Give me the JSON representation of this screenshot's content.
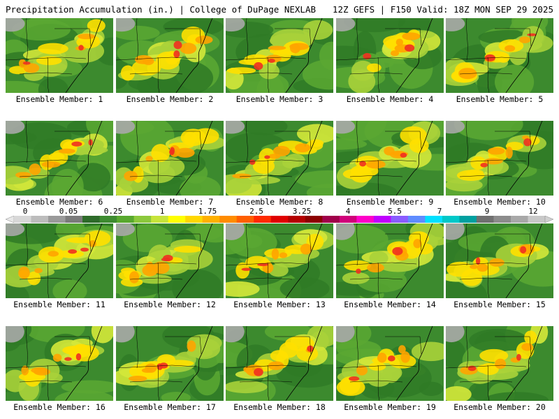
{
  "header": {
    "title": "Precipitation Accumulation (in.) | College of DuPage NEXLAB",
    "valid": "12Z GEFS | F150 Valid: 18Z MON SEP 29 2025"
  },
  "colorbar": {
    "tick_labels": [
      "0",
      "0.05",
      "0.25",
      "1",
      "1.75",
      "2.5",
      "3.25",
      "4",
      "5.5",
      "7",
      "9",
      "12"
    ],
    "colors": [
      "#d8d8d8",
      "#bcbcbc",
      "#9a9a9a",
      "#7b7b7b",
      "#2e6b2a",
      "#3e8b30",
      "#58a82e",
      "#8cc83c",
      "#c6e43a",
      "#ffff00",
      "#ffd700",
      "#ffb000",
      "#ff8c00",
      "#ff5f00",
      "#ff2a00",
      "#e00000",
      "#b40000",
      "#8c0000",
      "#a0004a",
      "#d0007a",
      "#ff00c8",
      "#c000ff",
      "#8a5cff",
      "#5f8cff",
      "#00e0ff",
      "#00c8c8",
      "#00a0a0",
      "#707070",
      "#8c8c8c",
      "#a8a8a8",
      "#c8c8c8"
    ]
  },
  "panels": [
    {
      "label": "Ensemble Member: 1"
    },
    {
      "label": "Ensemble Member: 2"
    },
    {
      "label": "Ensemble Member: 3"
    },
    {
      "label": "Ensemble Member: 4"
    },
    {
      "label": "Ensemble Member: 5"
    },
    {
      "label": "Ensemble Member: 6"
    },
    {
      "label": "Ensemble Member: 7"
    },
    {
      "label": "Ensemble Member: 8"
    },
    {
      "label": "Ensemble Member: 9"
    },
    {
      "label": "Ensemble Member: 10"
    },
    {
      "label": "Ensemble Member: 11"
    },
    {
      "label": "Ensemble Member: 12"
    },
    {
      "label": "Ensemble Member: 13"
    },
    {
      "label": "Ensemble Member: 14"
    },
    {
      "label": "Ensemble Member: 15"
    },
    {
      "label": "Ensemble Member: 16"
    },
    {
      "label": "Ensemble Member: 17"
    },
    {
      "label": "Ensemble Member: 18"
    },
    {
      "label": "Ensemble Member: 19"
    },
    {
      "label": "Ensemble Member: 20"
    }
  ]
}
